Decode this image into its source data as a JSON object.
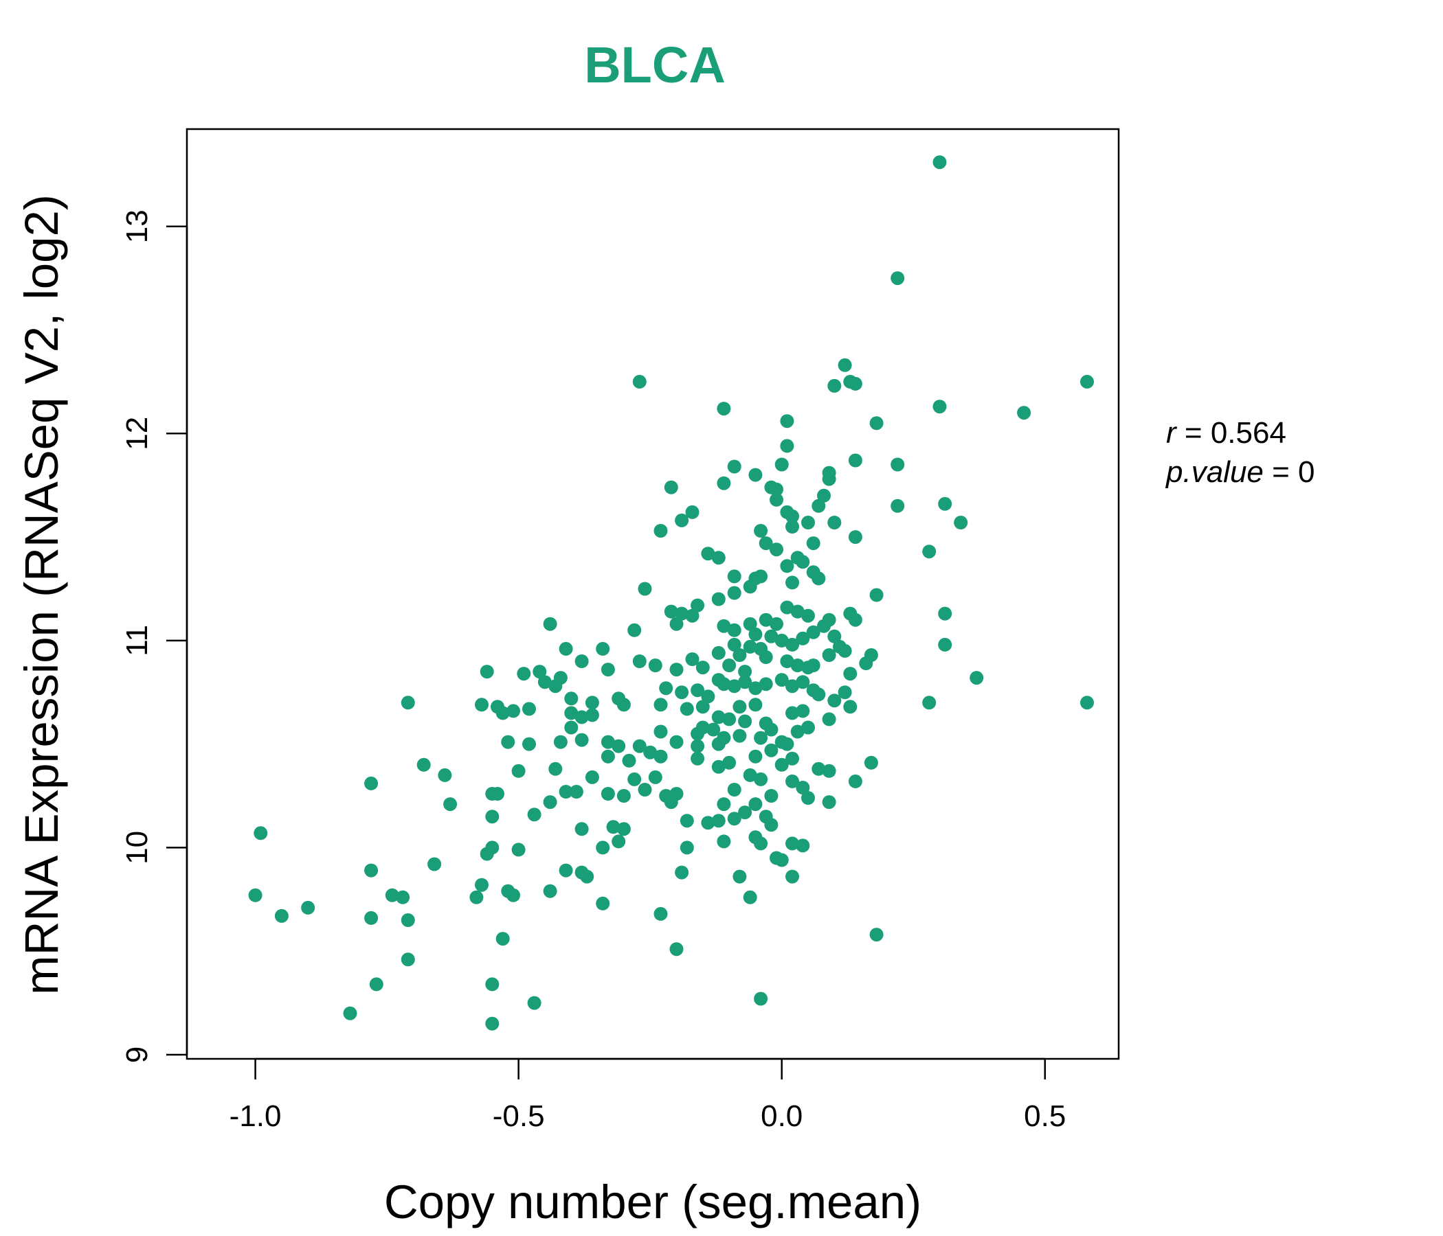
{
  "chart_data": {
    "type": "scatter",
    "title": "BLCA",
    "xlabel": "Copy number (seg.mean)",
    "ylabel": "mRNA Expression (RNASeq V2, log2)",
    "xlim": [
      -1.13,
      0.64
    ],
    "ylim": [
      8.98,
      13.47
    ],
    "xticks": [
      -1.0,
      -0.5,
      0.0,
      0.5
    ],
    "xtick_labels": [
      "-1.0",
      "-0.5",
      "0.0",
      "0.5"
    ],
    "yticks": [
      9,
      10,
      11,
      12,
      13
    ],
    "ytick_labels": [
      "9",
      "10",
      "11",
      "12",
      "13"
    ],
    "grid": false,
    "stats": {
      "r_label": "r",
      "r_value": "0.564",
      "p_label": "p.value",
      "p_value": "0"
    },
    "color": "#1a9e77",
    "points": [
      [
        0.3,
        13.31
      ],
      [
        0.22,
        12.75
      ],
      [
        0.58,
        12.25
      ],
      [
        -0.27,
        12.25
      ],
      [
        0.12,
        12.33
      ],
      [
        0.13,
        12.25
      ],
      [
        0.14,
        12.24
      ],
      [
        0.1,
        12.23
      ],
      [
        0.3,
        12.13
      ],
      [
        0.46,
        12.1
      ],
      [
        -0.11,
        12.12
      ],
      [
        0.01,
        12.06
      ],
      [
        0.18,
        12.05
      ],
      [
        0.01,
        11.94
      ],
      [
        0.22,
        11.85
      ],
      [
        0.14,
        11.87
      ],
      [
        0.0,
        11.85
      ],
      [
        -0.09,
        11.84
      ],
      [
        -0.05,
        11.8
      ],
      [
        0.09,
        11.81
      ],
      [
        -0.21,
        11.74
      ],
      [
        -0.11,
        11.76
      ],
      [
        -0.02,
        11.74
      ],
      [
        -0.01,
        11.73
      ],
      [
        0.09,
        11.78
      ],
      [
        0.08,
        11.7
      ],
      [
        0.07,
        11.65
      ],
      [
        -0.01,
        11.68
      ],
      [
        0.01,
        11.62
      ],
      [
        0.02,
        11.6
      ],
      [
        0.22,
        11.65
      ],
      [
        0.31,
        11.66
      ],
      [
        0.34,
        11.57
      ],
      [
        -0.17,
        11.62
      ],
      [
        -0.19,
        11.58
      ],
      [
        -0.23,
        11.53
      ],
      [
        -0.04,
        11.53
      ],
      [
        0.02,
        11.55
      ],
      [
        0.05,
        11.57
      ],
      [
        0.1,
        11.57
      ],
      [
        0.14,
        11.5
      ],
      [
        0.06,
        11.47
      ],
      [
        -0.03,
        11.47
      ],
      [
        -0.01,
        11.44
      ],
      [
        0.03,
        11.4
      ],
      [
        0.01,
        11.36
      ],
      [
        -0.14,
        11.42
      ],
      [
        -0.12,
        11.4
      ],
      [
        0.04,
        11.38
      ],
      [
        0.28,
        11.43
      ],
      [
        0.06,
        11.33
      ],
      [
        0.07,
        11.3
      ],
      [
        0.02,
        11.28
      ],
      [
        -0.05,
        11.3
      ],
      [
        -0.06,
        11.26
      ],
      [
        -0.04,
        11.31
      ],
      [
        -0.26,
        11.25
      ],
      [
        -0.09,
        11.31
      ],
      [
        -0.12,
        11.2
      ],
      [
        -0.09,
        11.23
      ],
      [
        0.18,
        11.22
      ],
      [
        -0.16,
        11.17
      ],
      [
        -0.21,
        11.14
      ],
      [
        -0.19,
        11.13
      ],
      [
        0.01,
        11.16
      ],
      [
        0.03,
        11.14
      ],
      [
        0.05,
        11.12
      ],
      [
        -0.03,
        11.1
      ],
      [
        -0.01,
        11.08
      ],
      [
        0.13,
        11.13
      ],
      [
        0.14,
        11.1
      ],
      [
        0.31,
        11.13
      ],
      [
        -0.17,
        11.12
      ],
      [
        -0.2,
        11.08
      ],
      [
        -0.11,
        11.07
      ],
      [
        -0.09,
        11.05
      ],
      [
        -0.06,
        11.08
      ],
      [
        -0.05,
        11.03
      ],
      [
        0.09,
        11.1
      ],
      [
        0.08,
        11.07
      ],
      [
        -0.44,
        11.08
      ],
      [
        -0.28,
        11.05
      ],
      [
        -0.02,
        11.02
      ],
      [
        0.0,
        11.0
      ],
      [
        0.02,
        10.98
      ],
      [
        0.04,
        11.01
      ],
      [
        0.06,
        11.04
      ],
      [
        0.1,
        11.02
      ],
      [
        0.11,
        10.97
      ],
      [
        -0.09,
        10.98
      ],
      [
        -0.06,
        10.97
      ],
      [
        -0.04,
        10.96
      ],
      [
        -0.41,
        10.96
      ],
      [
        -0.34,
        10.96
      ],
      [
        0.31,
        10.98
      ],
      [
        0.09,
        10.93
      ],
      [
        0.12,
        10.95
      ],
      [
        0.17,
        10.93
      ],
      [
        0.16,
        10.89
      ],
      [
        -0.12,
        10.94
      ],
      [
        -0.08,
        10.93
      ],
      [
        -0.03,
        10.92
      ],
      [
        0.01,
        10.9
      ],
      [
        0.03,
        10.88
      ],
      [
        0.05,
        10.87
      ],
      [
        0.06,
        10.88
      ],
      [
        -0.38,
        10.9
      ],
      [
        -0.27,
        10.9
      ],
      [
        -0.24,
        10.88
      ],
      [
        -0.2,
        10.86
      ],
      [
        -0.17,
        10.91
      ],
      [
        -0.15,
        10.87
      ],
      [
        -0.1,
        10.88
      ],
      [
        -0.07,
        10.85
      ],
      [
        -0.56,
        10.85
      ],
      [
        -0.46,
        10.85
      ],
      [
        -0.49,
        10.84
      ],
      [
        -0.42,
        10.82
      ],
      [
        -0.45,
        10.8
      ],
      [
        -0.43,
        10.78
      ],
      [
        -0.33,
        10.86
      ],
      [
        0.13,
        10.84
      ],
      [
        0.37,
        10.82
      ],
      [
        -0.12,
        10.81
      ],
      [
        -0.11,
        10.79
      ],
      [
        -0.09,
        10.78
      ],
      [
        -0.07,
        10.8
      ],
      [
        -0.05,
        10.77
      ],
      [
        -0.03,
        10.79
      ],
      [
        0.0,
        10.81
      ],
      [
        0.02,
        10.78
      ],
      [
        0.04,
        10.8
      ],
      [
        0.06,
        10.76
      ],
      [
        -0.22,
        10.77
      ],
      [
        -0.19,
        10.75
      ],
      [
        -0.16,
        10.76
      ],
      [
        -0.14,
        10.73
      ],
      [
        0.07,
        10.74
      ],
      [
        0.1,
        10.71
      ],
      [
        0.12,
        10.75
      ],
      [
        -0.4,
        10.72
      ],
      [
        -0.36,
        10.7
      ],
      [
        -0.31,
        10.72
      ],
      [
        -0.3,
        10.69
      ],
      [
        -0.71,
        10.7
      ],
      [
        -0.57,
        10.69
      ],
      [
        0.28,
        10.7
      ],
      [
        0.58,
        10.7
      ],
      [
        -0.23,
        10.69
      ],
      [
        -0.18,
        10.67
      ],
      [
        -0.15,
        10.68
      ],
      [
        -0.08,
        10.68
      ],
      [
        -0.05,
        10.69
      ],
      [
        0.02,
        10.65
      ],
      [
        0.04,
        10.66
      ],
      [
        0.13,
        10.68
      ],
      [
        -0.54,
        10.68
      ],
      [
        -0.53,
        10.65
      ],
      [
        -0.51,
        10.66
      ],
      [
        -0.48,
        10.67
      ],
      [
        -0.4,
        10.65
      ],
      [
        -0.38,
        10.63
      ],
      [
        -0.36,
        10.64
      ],
      [
        -0.12,
        10.63
      ],
      [
        -0.1,
        10.62
      ],
      [
        -0.07,
        10.61
      ],
      [
        -0.03,
        10.6
      ],
      [
        0.09,
        10.62
      ],
      [
        -0.15,
        10.58
      ],
      [
        -0.13,
        10.57
      ],
      [
        -0.02,
        10.57
      ],
      [
        0.03,
        10.56
      ],
      [
        0.05,
        10.58
      ],
      [
        -0.4,
        10.58
      ],
      [
        -0.38,
        10.52
      ],
      [
        -0.23,
        10.56
      ],
      [
        -0.16,
        10.55
      ],
      [
        -0.11,
        10.53
      ],
      [
        -0.08,
        10.54
      ],
      [
        -0.04,
        10.53
      ],
      [
        0.0,
        10.51
      ],
      [
        0.01,
        10.5
      ],
      [
        -0.52,
        10.51
      ],
      [
        -0.48,
        10.5
      ],
      [
        -0.42,
        10.51
      ],
      [
        -0.33,
        10.51
      ],
      [
        -0.31,
        10.49
      ],
      [
        -0.27,
        10.49
      ],
      [
        -0.2,
        10.51
      ],
      [
        -0.16,
        10.49
      ],
      [
        -0.12,
        10.5
      ],
      [
        -0.02,
        10.47
      ],
      [
        -0.05,
        10.44
      ],
      [
        0.02,
        10.43
      ],
      [
        -0.33,
        10.44
      ],
      [
        -0.29,
        10.42
      ],
      [
        -0.25,
        10.46
      ],
      [
        -0.23,
        10.44
      ],
      [
        -0.16,
        10.43
      ],
      [
        -0.12,
        10.39
      ],
      [
        -0.1,
        10.41
      ],
      [
        0.0,
        10.4
      ],
      [
        0.17,
        10.41
      ],
      [
        0.07,
        10.38
      ],
      [
        0.09,
        10.37
      ],
      [
        -0.68,
        10.4
      ],
      [
        -0.64,
        10.35
      ],
      [
        -0.5,
        10.37
      ],
      [
        -0.43,
        10.38
      ],
      [
        -0.36,
        10.34
      ],
      [
        -0.28,
        10.33
      ],
      [
        -0.24,
        10.34
      ],
      [
        -0.06,
        10.35
      ],
      [
        -0.04,
        10.33
      ],
      [
        0.02,
        10.32
      ],
      [
        0.04,
        10.29
      ],
      [
        0.14,
        10.32
      ],
      [
        -0.78,
        10.31
      ],
      [
        -0.54,
        10.26
      ],
      [
        -0.55,
        10.26
      ],
      [
        -0.41,
        10.27
      ],
      [
        -0.39,
        10.27
      ],
      [
        -0.33,
        10.26
      ],
      [
        -0.3,
        10.25
      ],
      [
        -0.26,
        10.28
      ],
      [
        -0.22,
        10.25
      ],
      [
        -0.2,
        10.26
      ],
      [
        -0.09,
        10.28
      ],
      [
        -0.02,
        10.25
      ],
      [
        0.05,
        10.24
      ],
      [
        0.09,
        10.22
      ],
      [
        -0.63,
        10.21
      ],
      [
        -0.44,
        10.22
      ],
      [
        -0.21,
        10.22
      ],
      [
        -0.11,
        10.21
      ],
      [
        -0.07,
        10.17
      ],
      [
        -0.05,
        10.21
      ],
      [
        -0.55,
        10.15
      ],
      [
        -0.47,
        10.16
      ],
      [
        -0.32,
        10.1
      ],
      [
        -0.18,
        10.13
      ],
      [
        -0.14,
        10.12
      ],
      [
        -0.12,
        10.13
      ],
      [
        -0.09,
        10.14
      ],
      [
        -0.03,
        10.15
      ],
      [
        -0.02,
        10.11
      ],
      [
        -0.38,
        10.09
      ],
      [
        -0.3,
        10.09
      ],
      [
        -0.99,
        10.07
      ],
      [
        -0.31,
        10.03
      ],
      [
        -0.11,
        10.03
      ],
      [
        -0.05,
        10.05
      ],
      [
        -0.04,
        10.02
      ],
      [
        0.02,
        10.02
      ],
      [
        0.04,
        10.01
      ],
      [
        -0.34,
        10.0
      ],
      [
        -0.18,
        10.0
      ],
      [
        -0.55,
        10.0
      ],
      [
        -0.56,
        9.97
      ],
      [
        -0.5,
        9.99
      ],
      [
        -0.01,
        9.95
      ],
      [
        0.0,
        9.94
      ],
      [
        -0.66,
        9.92
      ],
      [
        -0.78,
        9.89
      ],
      [
        -0.41,
        9.89
      ],
      [
        -0.38,
        9.88
      ],
      [
        -0.37,
        9.86
      ],
      [
        -0.19,
        9.88
      ],
      [
        -0.08,
        9.86
      ],
      [
        0.02,
        9.86
      ],
      [
        -0.57,
        9.82
      ],
      [
        -0.52,
        9.79
      ],
      [
        -0.51,
        9.77
      ],
      [
        -0.44,
        9.79
      ],
      [
        -0.58,
        9.76
      ],
      [
        -0.74,
        9.77
      ],
      [
        -0.72,
        9.76
      ],
      [
        -0.06,
        9.76
      ],
      [
        -1.0,
        9.77
      ],
      [
        -0.34,
        9.73
      ],
      [
        -0.9,
        9.71
      ],
      [
        -0.95,
        9.67
      ],
      [
        -0.78,
        9.66
      ],
      [
        -0.71,
        9.65
      ],
      [
        -0.23,
        9.68
      ],
      [
        0.18,
        9.58
      ],
      [
        -0.53,
        9.56
      ],
      [
        -0.2,
        9.51
      ],
      [
        -0.71,
        9.46
      ],
      [
        -0.77,
        9.34
      ],
      [
        -0.55,
        9.34
      ],
      [
        -0.04,
        9.27
      ],
      [
        -0.47,
        9.25
      ],
      [
        -0.82,
        9.2
      ],
      [
        -0.55,
        9.15
      ]
    ]
  }
}
